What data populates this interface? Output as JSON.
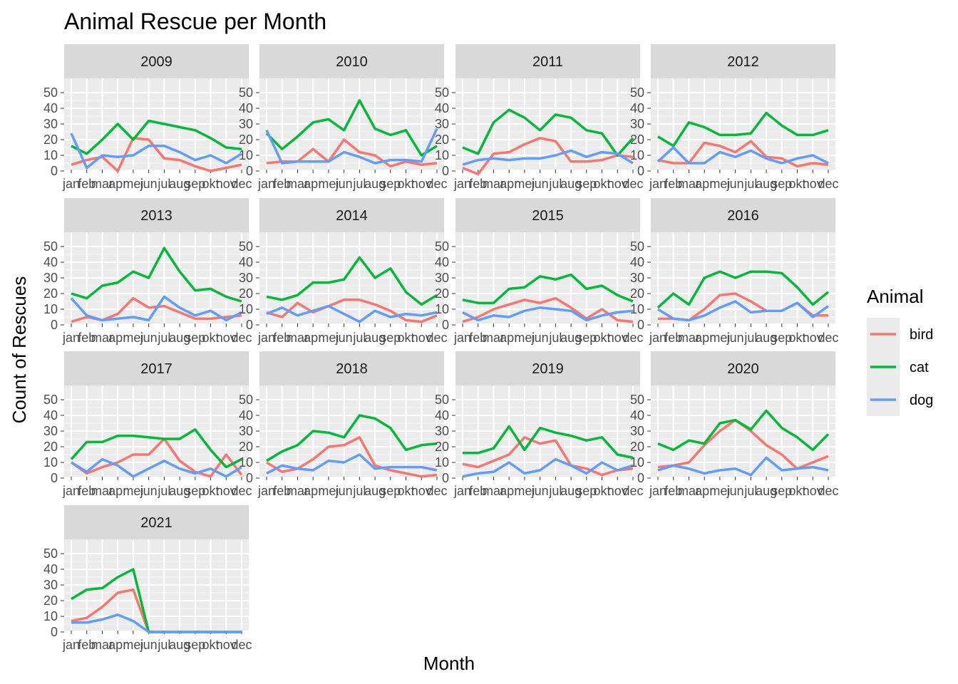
{
  "chart_data": {
    "type": "line",
    "title": "Animal Rescue per Month",
    "xlabel": "Month",
    "ylabel": "Count of Rescues",
    "ylim": [
      0,
      50
    ],
    "yticks": [
      0,
      10,
      20,
      30,
      40,
      50
    ],
    "grid": true,
    "legend": {
      "title": "Animal",
      "position": "right"
    },
    "categories": [
      "jan",
      "feb",
      "mar",
      "apr",
      "mei",
      "jun",
      "jul",
      "aug",
      "sep",
      "okt",
      "nov",
      "dec"
    ],
    "series_names": [
      "bird",
      "cat",
      "dog"
    ],
    "colors": {
      "bird": "#F8766D",
      "cat": "#00BA38",
      "dog": "#619CFF"
    },
    "facets": [
      {
        "label": "2009",
        "series": {
          "bird": [
            4,
            7,
            9,
            0,
            21,
            20,
            8,
            7,
            3,
            0,
            2,
            4
          ],
          "cat": [
            16,
            11,
            20,
            30,
            20,
            32,
            30,
            28,
            26,
            21,
            15,
            14
          ],
          "dog": [
            24,
            2,
            10,
            9,
            10,
            16,
            16,
            12,
            7,
            10,
            5,
            11
          ]
        }
      },
      {
        "label": "2010",
        "series": {
          "bird": [
            5,
            6,
            6,
            14,
            6,
            20,
            12,
            10,
            3,
            6,
            4,
            5
          ],
          "cat": [
            24,
            14,
            22,
            31,
            33,
            26,
            45,
            27,
            23,
            26,
            10,
            16
          ],
          "dog": [
            26,
            5,
            6,
            6,
            6,
            12,
            9,
            5,
            7,
            7,
            6,
            27
          ]
        }
      },
      {
        "label": "2011",
        "series": {
          "bird": [
            2,
            -2,
            11,
            12,
            17,
            21,
            19,
            6,
            6,
            7,
            10,
            9
          ],
          "cat": [
            15,
            11,
            31,
            39,
            34,
            26,
            36,
            34,
            26,
            24,
            10,
            21
          ],
          "dog": [
            4,
            7,
            8,
            7,
            8,
            8,
            10,
            13,
            9,
            12,
            11,
            5
          ]
        }
      },
      {
        "label": "2012",
        "series": {
          "bird": [
            7,
            5,
            5,
            18,
            16,
            12,
            19,
            9,
            8,
            3,
            5,
            4
          ],
          "cat": [
            22,
            16,
            31,
            28,
            23,
            23,
            24,
            37,
            29,
            23,
            23,
            26
          ],
          "dog": [
            6,
            15,
            5,
            5,
            12,
            9,
            13,
            8,
            5,
            8,
            10,
            5
          ]
        }
      },
      {
        "label": "2013",
        "series": {
          "bird": [
            2,
            5,
            3,
            7,
            17,
            11,
            12,
            8,
            4,
            4,
            5,
            6
          ],
          "cat": [
            20,
            17,
            25,
            27,
            34,
            30,
            49,
            34,
            22,
            23,
            18,
            15
          ],
          "dog": [
            17,
            6,
            3,
            4,
            5,
            3,
            18,
            11,
            6,
            9,
            3,
            8
          ]
        }
      },
      {
        "label": "2014",
        "series": {
          "bird": [
            8,
            5,
            14,
            8,
            12,
            16,
            16,
            13,
            9,
            3,
            2,
            6
          ],
          "cat": [
            18,
            16,
            19,
            27,
            27,
            29,
            43,
            30,
            36,
            21,
            13,
            19
          ],
          "dog": [
            7,
            11,
            6,
            9,
            12,
            7,
            2,
            9,
            5,
            7,
            6,
            8
          ]
        }
      },
      {
        "label": "2015",
        "series": {
          "bird": [
            2,
            5,
            10,
            13,
            16,
            14,
            17,
            11,
            4,
            10,
            3,
            2
          ],
          "cat": [
            16,
            14,
            14,
            23,
            24,
            31,
            29,
            32,
            23,
            25,
            19,
            15
          ],
          "dog": [
            8,
            3,
            6,
            5,
            9,
            11,
            10,
            9,
            3,
            6,
            8,
            9
          ]
        }
      },
      {
        "label": "2016",
        "series": {
          "bird": [
            4,
            4,
            3,
            10,
            19,
            20,
            15,
            9,
            9,
            14,
            6,
            6
          ],
          "cat": [
            11,
            20,
            13,
            30,
            34,
            30,
            34,
            34,
            33,
            24,
            13,
            21
          ],
          "dog": [
            10,
            4,
            3,
            6,
            11,
            15,
            8,
            9,
            9,
            14,
            5,
            12
          ]
        }
      },
      {
        "label": "2017",
        "series": {
          "bird": [
            10,
            3,
            7,
            10,
            15,
            15,
            25,
            11,
            4,
            1,
            15,
            2
          ],
          "cat": [
            12,
            23,
            23,
            27,
            27,
            26,
            25,
            25,
            31,
            18,
            7,
            12
          ],
          "dog": [
            10,
            4,
            12,
            8,
            1,
            6,
            11,
            6,
            3,
            6,
            1,
            7
          ]
        }
      },
      {
        "label": "2018",
        "series": {
          "bird": [
            10,
            4,
            6,
            12,
            20,
            21,
            26,
            8,
            5,
            3,
            1,
            2
          ],
          "cat": [
            11,
            17,
            21,
            30,
            29,
            26,
            40,
            38,
            32,
            18,
            21,
            22
          ],
          "dog": [
            3,
            8,
            6,
            5,
            11,
            10,
            15,
            6,
            7,
            7,
            7,
            5
          ]
        }
      },
      {
        "label": "2019",
        "series": {
          "bird": [
            9,
            7,
            11,
            15,
            26,
            22,
            24,
            8,
            6,
            2,
            5,
            6
          ],
          "cat": [
            16,
            16,
            19,
            33,
            18,
            32,
            29,
            27,
            24,
            26,
            15,
            13
          ],
          "dog": [
            1,
            3,
            4,
            10,
            3,
            5,
            12,
            8,
            3,
            10,
            5,
            8
          ]
        }
      },
      {
        "label": "2020",
        "series": {
          "bird": [
            7,
            8,
            10,
            21,
            30,
            37,
            30,
            21,
            15,
            6,
            10,
            14
          ],
          "cat": [
            22,
            18,
            24,
            22,
            35,
            37,
            31,
            43,
            32,
            26,
            18,
            28
          ],
          "dog": [
            5,
            8,
            6,
            3,
            5,
            6,
            2,
            13,
            5,
            6,
            7,
            5
          ]
        }
      },
      {
        "label": "2021",
        "series": {
          "bird": [
            7,
            9,
            16,
            25,
            27,
            0,
            0,
            0,
            0,
            0,
            0,
            0
          ],
          "cat": [
            21,
            27,
            28,
            35,
            40,
            0,
            0,
            0,
            0,
            0,
            0,
            0
          ],
          "dog": [
            6,
            6,
            8,
            11,
            7,
            0,
            0,
            0,
            0,
            0,
            0,
            0
          ]
        }
      }
    ]
  }
}
